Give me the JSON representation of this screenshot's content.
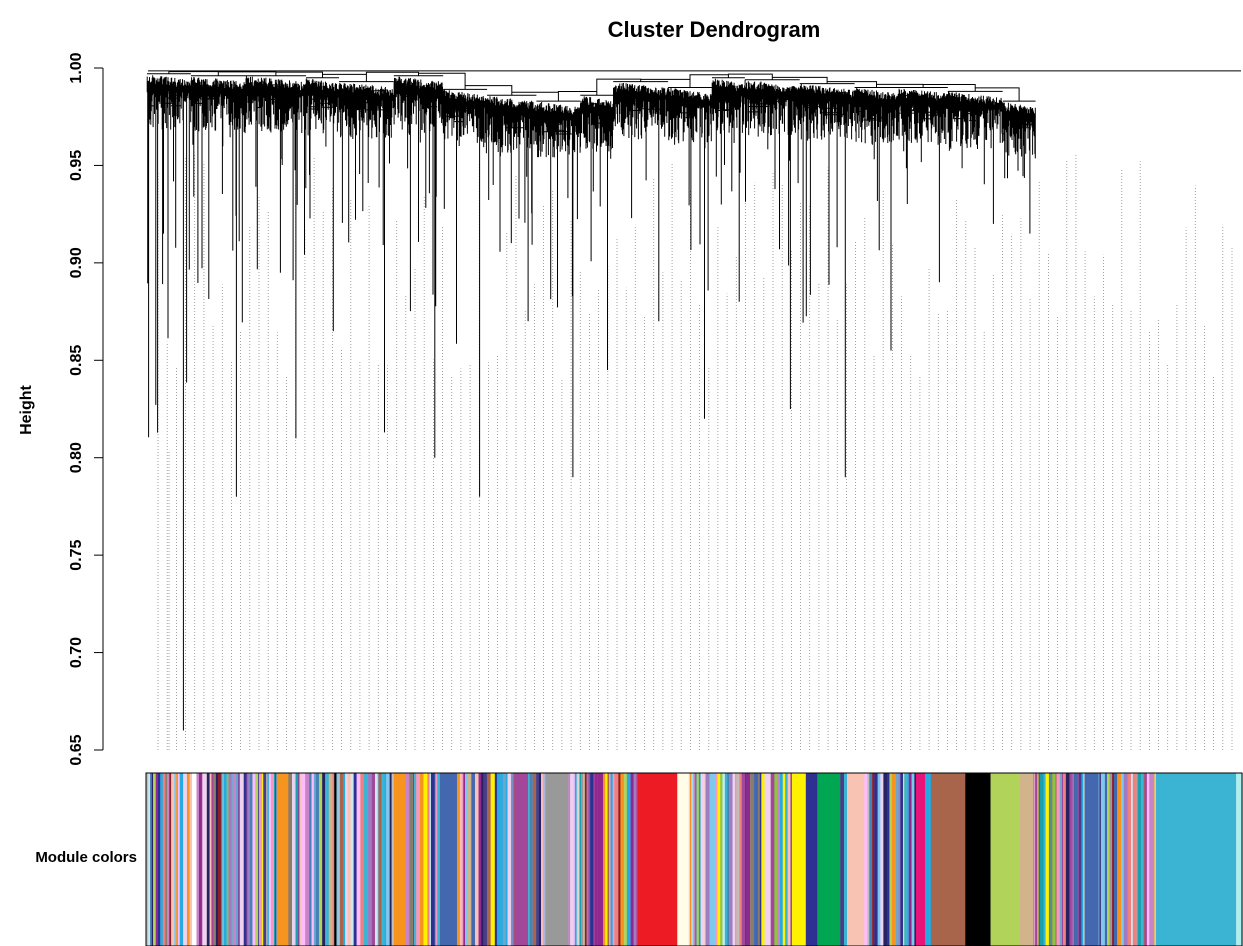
{
  "chart_data": {
    "type": "dendrogram",
    "title": "Cluster Dendrogram",
    "ylabel": "Height",
    "xlabel": "",
    "ylim": [
      0.65,
      1.0
    ],
    "yticks": [
      0.65,
      0.7,
      0.75,
      0.8,
      0.85,
      0.9,
      0.95,
      1.0
    ],
    "ytick_labels": [
      "0.65",
      "0.70",
      "0.75",
      "0.80",
      "0.85",
      "0.90",
      "0.95",
      "1.00"
    ],
    "grid": false,
    "leaf_guides": "dotted",
    "color_bar_label": "Module colors",
    "module_colors": {
      "turquoise": "#3BB3D3",
      "blue": "#2E3192",
      "brown": "#A9644C",
      "yellow": "#FFF200",
      "green": "#00A651",
      "red": "#ED1C24",
      "black": "#000000",
      "pink": "#F49AC1",
      "magenta": "#A3479B",
      "purple": "#92278F",
      "greenyellow": "#B2D35A",
      "tan": "#D2B48C",
      "salmon": "#F9C3B3",
      "cyan": "#25AAE1",
      "midnightblue": "#262262",
      "lightcyan": "#C9EAF1",
      "grey60": "#999999",
      "lightgreen": "#8CC63F",
      "lightyellow": "#FFFDE7",
      "royalblue": "#4468B0",
      "darkred": "#8B1E2A",
      "darkgreen": "#1E6B36",
      "darkturquoise": "#1A9FAF",
      "darkgrey": "#666666",
      "orange": "#F7941D",
      "darkorange": "#F26522",
      "white": "#FFFFFF",
      "skyblue": "#7FC8ED",
      "saddlebrown": "#8B4513",
      "steelblue": "#4682B4",
      "paleturquoise": "#AFEEEE",
      "violet": "#C785C8",
      "darkolivegreen": "#556B2F",
      "darkmagenta": "#8B008B",
      "sienna3": "#CD6839",
      "yellowgreen": "#9ACD32",
      "skyblue3": "#6CA6CD",
      "plum1": "#FFBBFF",
      "orangered4": "#8B2500",
      "mediumpurple3": "#8968CD",
      "lightsteelblue1": "#CAE1FF",
      "lightcoral": "#F08080",
      "ivory": "#FFFFF0",
      "floralwhite": "#FFFAF0",
      "darkslateblue": "#483D8B",
      "bisque4": "#8B7D6B",
      "thistle2": "#EED2EE",
      "mediumorchid": "#BA55D3",
      "grey": "#BEBEBE",
      "hotpink": "#E8147A",
      "lavender": "#9E7CC1"
    },
    "module_segments": [
      {
        "module": "mixed",
        "share": 0.04
      },
      {
        "module": "white",
        "share": 0.004
      },
      {
        "module": "mixed",
        "share": 0.07
      },
      {
        "module": "orange",
        "share": 0.01
      },
      {
        "module": "mixed",
        "share": 0.04
      },
      {
        "module": "black",
        "share": 0.002
      },
      {
        "module": "mixed",
        "share": 0.05
      },
      {
        "module": "orange",
        "share": 0.01
      },
      {
        "module": "mixed",
        "share": 0.03
      },
      {
        "module": "royalblue",
        "share": 0.015
      },
      {
        "module": "mixed",
        "share": 0.05
      },
      {
        "module": "magenta",
        "share": 0.012
      },
      {
        "module": "mixed",
        "share": 0.015
      },
      {
        "module": "grey60",
        "share": 0.02
      },
      {
        "module": "mixed",
        "share": 0.06
      },
      {
        "module": "red",
        "share": 0.035
      },
      {
        "module": "lightyellow",
        "share": 0.01
      },
      {
        "module": "mixed",
        "share": 0.09
      },
      {
        "module": "yellow",
        "share": 0.012
      },
      {
        "module": "blue",
        "share": 0.01
      },
      {
        "module": "green",
        "share": 0.02
      },
      {
        "module": "mixed",
        "share": 0.006
      },
      {
        "module": "salmon",
        "share": 0.015
      },
      {
        "module": "mixed",
        "share": 0.045
      },
      {
        "module": "hotpink",
        "share": 0.008
      },
      {
        "module": "cyan",
        "share": 0.005
      },
      {
        "module": "brown",
        "share": 0.03
      },
      {
        "module": "black",
        "share": 0.022
      },
      {
        "module": "greenyellow",
        "share": 0.025
      },
      {
        "module": "tan",
        "share": 0.012
      },
      {
        "module": "mixed",
        "share": 0.045
      },
      {
        "module": "royalblue",
        "share": 0.012
      },
      {
        "module": "mixed",
        "share": 0.05
      },
      {
        "module": "turquoise",
        "share": 0.07
      },
      {
        "module": "paleturquoise",
        "share": 0.006
      }
    ],
    "dendrogram_clusters": [
      {
        "share": 0.04,
        "min_height": 0.66,
        "top": 0.997
      },
      {
        "share": 0.05,
        "min_height": 0.78,
        "top": 0.996
      },
      {
        "share": 0.055,
        "min_height": 0.81,
        "top": 0.996
      },
      {
        "share": 0.03,
        "min_height": 0.865,
        "top": 0.995
      },
      {
        "share": 0.05,
        "min_height": 0.813,
        "top": 0.993
      },
      {
        "share": 0.045,
        "min_height": 0.8,
        "top": 0.996
      },
      {
        "share": 0.04,
        "min_height": 0.78,
        "top": 0.989
      },
      {
        "share": 0.045,
        "min_height": 0.87,
        "top": 0.986
      },
      {
        "share": 0.04,
        "min_height": 0.79,
        "top": 0.983
      },
      {
        "share": 0.03,
        "min_height": 0.845,
        "top": 0.986
      },
      {
        "share": 0.05,
        "min_height": 0.87,
        "top": 0.993
      },
      {
        "share": 0.04,
        "min_height": 0.82,
        "top": 0.99
      },
      {
        "share": 0.03,
        "min_height": 0.88,
        "top": 0.995
      },
      {
        "share": 0.05,
        "min_height": 0.825,
        "top": 0.994
      },
      {
        "share": 0.05,
        "min_height": 0.79,
        "top": 0.992
      },
      {
        "share": 0.04,
        "min_height": 0.855,
        "top": 0.99
      },
      {
        "share": 0.045,
        "min_height": 0.89,
        "top": 0.99
      },
      {
        "share": 0.05,
        "min_height": 0.92,
        "top": 0.988
      },
      {
        "share": 0.03,
        "min_height": 0.915,
        "top": 0.983
      }
    ]
  }
}
